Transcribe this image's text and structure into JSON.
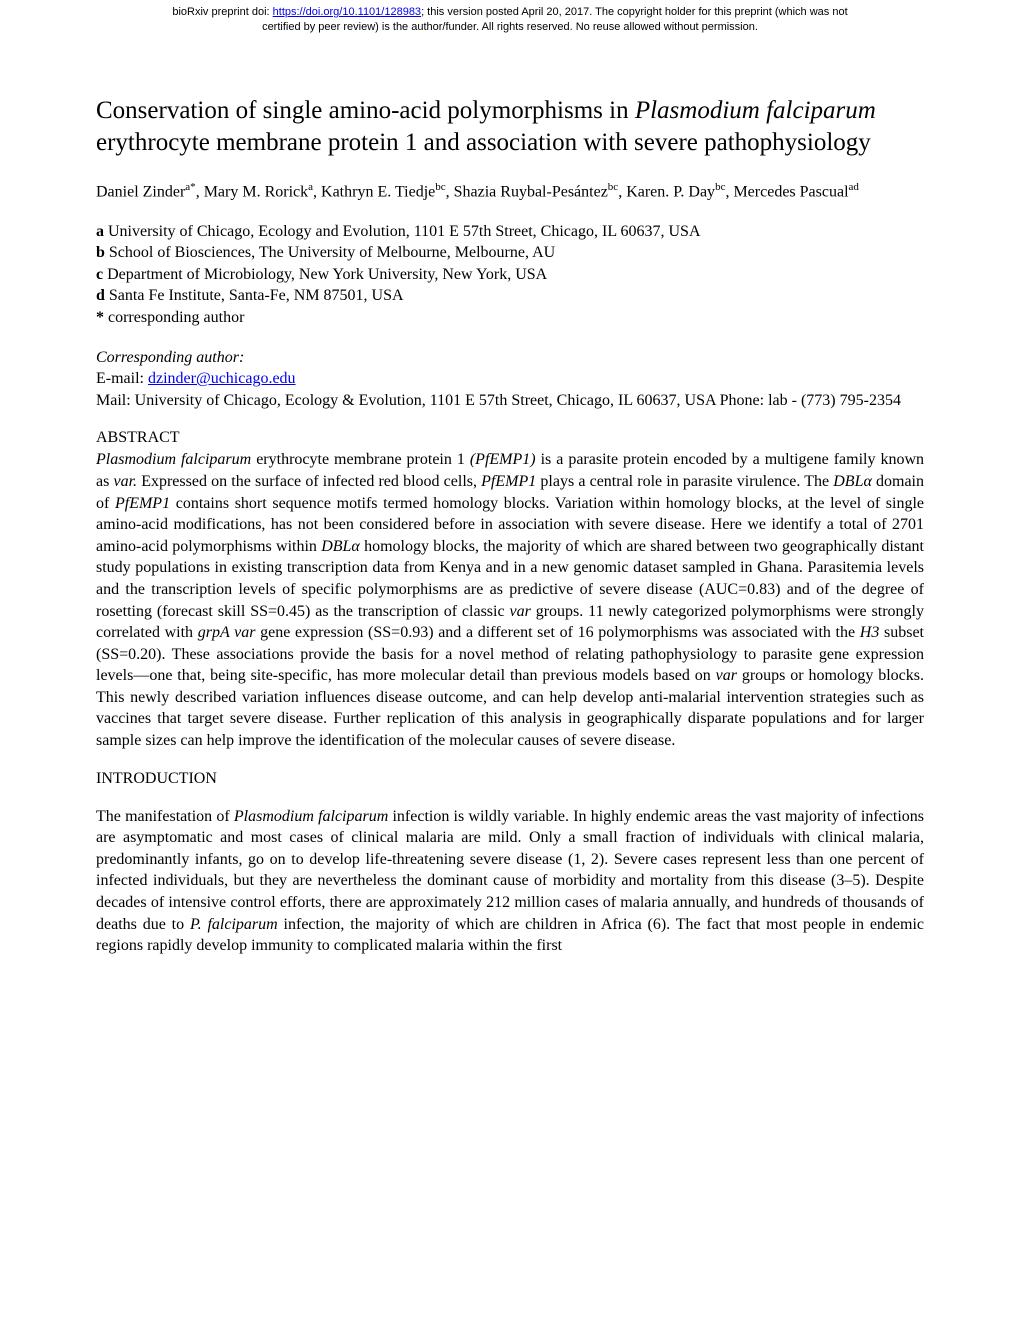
{
  "banner": {
    "prefix": "bioRxiv preprint doi: ",
    "doi_url": "https://doi.org/10.1101/128983",
    "mid": "; this version posted April 20, 2017. The copyright holder for this preprint (which was not",
    "line2": "certified by peer review) is the author/funder. All rights reserved. No reuse allowed without permission.",
    "link_color": "#0000ee"
  },
  "title": {
    "part1": "Conservation of single amino-acid polymorphisms in ",
    "italic1": "Plasmodium falciparum",
    "part2": " erythrocyte membrane protein 1 and association with severe pathophysiology",
    "fontsize": 25
  },
  "authors": {
    "entries": [
      {
        "name": "Daniel Zinder",
        "sup": "a*"
      },
      {
        "name": "Mary M. Rorick",
        "sup": "a"
      },
      {
        "name": "Kathryn E. Tiedje",
        "sup": "bc"
      },
      {
        "name": "Shazia Ruybal-Pesántez",
        "sup": "bc"
      },
      {
        "name": "Karen. P. Day",
        "sup": "bc"
      },
      {
        "name": "Mercedes Pascual",
        "sup": "ad"
      }
    ],
    "separator": ", ",
    "fontsize": 16
  },
  "affiliations": {
    "items": [
      {
        "key": "a",
        "text": " University of Chicago, Ecology and Evolution, 1101 E 57th Street, Chicago, IL 60637, USA"
      },
      {
        "key": "b",
        "text": " School of Biosciences, The University of Melbourne, Melbourne, AU"
      },
      {
        "key": "c",
        "text": " Department of Microbiology, New York University, New York, USA"
      },
      {
        "key": "d",
        "text": " Santa Fe Institute, Santa-Fe, NM 87501, USA"
      },
      {
        "key": "*",
        "text": " corresponding author"
      }
    ],
    "fontsize": 16
  },
  "corresponding": {
    "heading": "Corresponding author:",
    "email_label": "E-mail: ",
    "email": "dzinder@uchicago.edu",
    "mail": "Mail: University of Chicago, Ecology & Evolution, 1101 E 57th Street, Chicago, IL 60637, USA Phone: lab - (773) 795-2354",
    "fontsize": 16
  },
  "abstract": {
    "heading": "ABSTRACT",
    "segments": [
      {
        "t": "Plasmodium falciparum",
        "i": true
      },
      {
        "t": " erythrocyte membrane protein 1 "
      },
      {
        "t": "(PfEMP1)",
        "i": true
      },
      {
        "t": " is a parasite protein encoded by a multigene family known as "
      },
      {
        "t": "var.",
        "i": true
      },
      {
        "t": " Expressed on the surface of infected red blood cells, "
      },
      {
        "t": "PfEMP1",
        "i": true
      },
      {
        "t": " plays a central role in parasite virulence. The "
      },
      {
        "t": "DBLα",
        "i": true
      },
      {
        "t": " domain of "
      },
      {
        "t": "PfEMP1",
        "i": true
      },
      {
        "t": " contains short sequence motifs termed homology blocks. Variation within homology blocks, at the level of single amino-acid modifications, has not been considered before in association with severe disease. Here we identify a total of 2701 amino-acid polymorphisms within "
      },
      {
        "t": "DBLα",
        "i": true
      },
      {
        "t": " homology blocks, the majority of which are shared between two geographically distant study populations in existing transcription data from Kenya and in a new genomic dataset sampled in Ghana. Parasitemia levels and the transcription levels of specific polymorphisms are as predictive of severe disease (AUC=0.83) and of the degree of rosetting (forecast skill SS=0.45) as the transcription of classic "
      },
      {
        "t": "var",
        "i": true
      },
      {
        "t": " groups. 11 newly categorized polymorphisms were strongly correlated with "
      },
      {
        "t": "grpA var",
        "i": true
      },
      {
        "t": " gene expression (SS=0.93) and a different set of 16 polymorphisms was associated with the "
      },
      {
        "t": "H3",
        "i": true
      },
      {
        "t": " subset (SS=0.20). These associations provide the basis for a novel method of relating pathophysiology to parasite gene expression levels—one that, being site-specific, has more molecular detail than previous models based on "
      },
      {
        "t": "var",
        "i": true
      },
      {
        "t": " groups or homology blocks. This newly described variation influences disease outcome, and can help develop anti-malarial intervention strategies such as vaccines that target severe disease. Further replication of this analysis in geographically disparate populations and for larger sample sizes can help improve the identification of the molecular causes of severe disease."
      }
    ],
    "fontsize": 16
  },
  "introduction": {
    "heading": "INTRODUCTION",
    "segments": [
      {
        "t": "The manifestation of "
      },
      {
        "t": "Plasmodium falciparum",
        "i": true
      },
      {
        "t": " infection is wildly variable. In highly endemic areas the vast majority of infections are asymptomatic and most cases of clinical malaria are mild. Only a small fraction of individuals with clinical malaria, predominantly infants, go on to develop life-threatening severe disease (1, 2). Severe cases represent less than one percent of infected individuals, but they are nevertheless the dominant cause of morbidity and mortality from this disease (3–5). Despite decades of intensive control efforts, there are approximately 212 million cases of malaria annually, and hundreds of thousands of deaths due to "
      },
      {
        "t": "P. falciparum",
        "i": true
      },
      {
        "t": " infection, the majority of which are children in Africa (6). The fact that most people in endemic regions rapidly develop immunity to complicated malaria within the first"
      }
    ],
    "fontsize": 16
  },
  "colors": {
    "text": "#000000",
    "background": "#ffffff",
    "link": "#0000ee"
  }
}
